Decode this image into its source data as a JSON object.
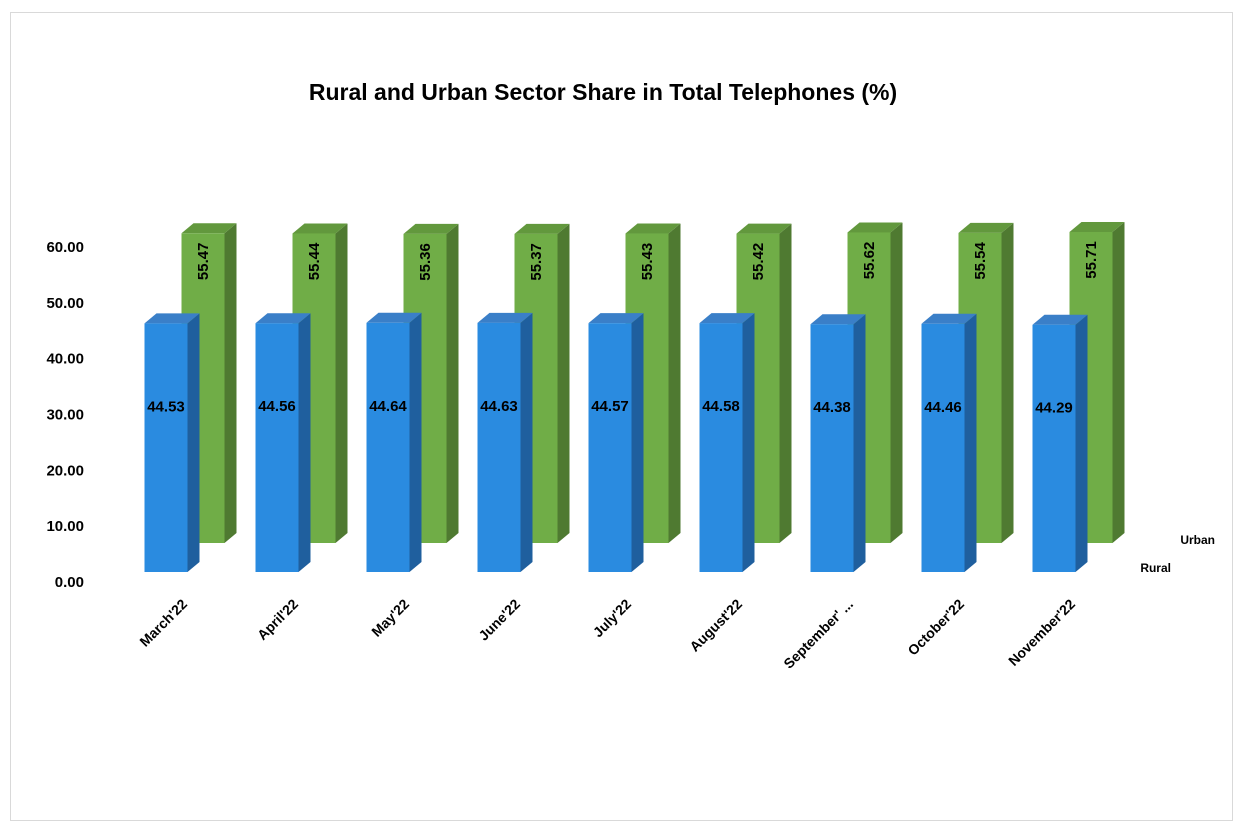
{
  "chart_data": {
    "type": "bar3d",
    "title": "Rural and Urban Sector Share in Total Telephones (%)",
    "categories": [
      "March'22",
      "April'22",
      "May'22",
      "June'22",
      "July'22",
      "August'22",
      "September' ...",
      "October'22",
      "November'22"
    ],
    "series": [
      {
        "name": "Rural",
        "color": "#2a8be0",
        "values": [
          44.53,
          44.56,
          44.64,
          44.63,
          44.57,
          44.58,
          44.38,
          44.46,
          44.29
        ]
      },
      {
        "name": "Urban",
        "color": "#70ad47",
        "values": [
          55.47,
          55.44,
          55.36,
          55.37,
          55.43,
          55.42,
          55.62,
          55.54,
          55.71
        ]
      }
    ],
    "ylim": [
      0,
      60
    ],
    "yticks": [
      {
        "value": 0,
        "label": "0.00"
      },
      {
        "value": 10,
        "label": "10.00"
      },
      {
        "value": 20,
        "label": "20.00"
      },
      {
        "value": 30,
        "label": "30.00"
      },
      {
        "value": 40,
        "label": "40.00"
      },
      {
        "value": 50,
        "label": "50.00"
      },
      {
        "value": 60,
        "label": "60.00"
      }
    ]
  }
}
